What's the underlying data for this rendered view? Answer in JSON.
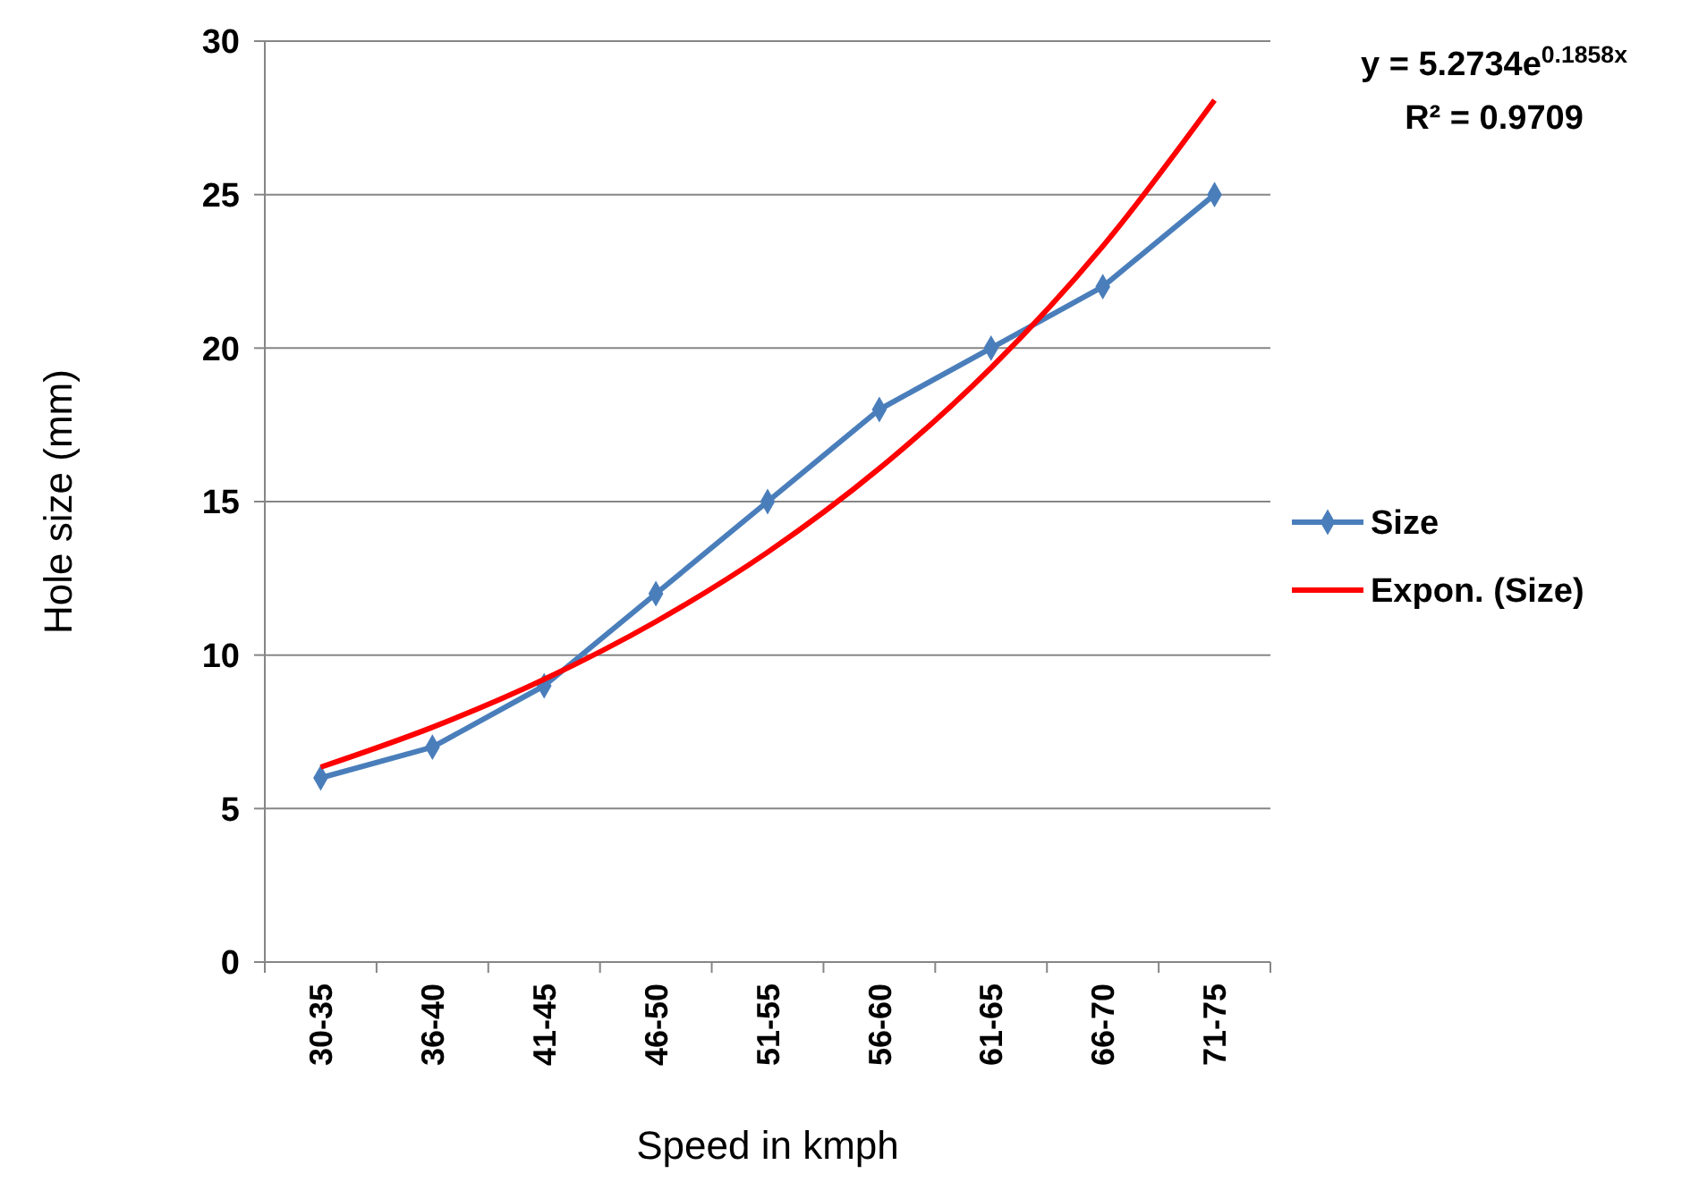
{
  "chart_data": {
    "type": "line",
    "xlabel": "Speed in kmph",
    "ylabel": "Hole size (mm)",
    "categories": [
      "30-35",
      "36-40",
      "41-45",
      "46-50",
      "51-55",
      "56-60",
      "61-65",
      "66-70",
      "71-75"
    ],
    "series": [
      {
        "name": "Size",
        "color": "#4a7ebb",
        "marker": "diamond",
        "values": [
          6,
          7,
          9,
          12,
          15,
          18,
          20,
          22,
          25
        ]
      },
      {
        "name": "Expon. (Size)",
        "color": "#ff0000",
        "type": "line",
        "marker": "none",
        "values": [
          6.35,
          7.65,
          9.21,
          11.09,
          13.35,
          16.08,
          19.36,
          23.32,
          28.08
        ]
      }
    ],
    "ylim": [
      0,
      30
    ],
    "yticks": [
      0,
      5,
      10,
      15,
      20,
      25,
      30
    ],
    "grid": "y",
    "legend": "right",
    "annotations": [
      "y = 5.2734e$^{0.1858x}$",
      "R² = 0.9709"
    ]
  }
}
